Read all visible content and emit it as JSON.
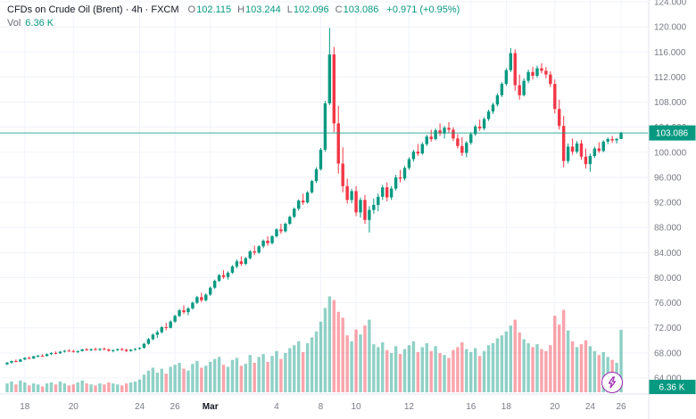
{
  "legend": {
    "title": "CFDs on Crude Oil (Brent) · 4h · FXCM",
    "o_label": "O",
    "o_value": "102.115",
    "h_label": "H",
    "h_value": "103.244",
    "l_label": "L",
    "l_value": "102.096",
    "c_label": "C",
    "c_value": "103.086",
    "change": "+0.971 (+0.95%)",
    "vol_label": "Vol",
    "vol_value": "6.36 K"
  },
  "colors": {
    "up": "#089981",
    "down": "#f23645",
    "vol_up": "rgba(8,153,129,0.45)",
    "vol_down": "rgba(242,54,69,0.45)",
    "grid": "#f0f3fa",
    "axis_text": "#787b86",
    "axis_border": "#e0e3eb",
    "badge_bg": "#089981",
    "badge_text": "#ffffff",
    "month_text": "#131722",
    "quick_button": "#9c27b0"
  },
  "price_axis": {
    "current_price_label": "103.086",
    "volume_badge_label": "6.36 K"
  },
  "quick_button": {
    "icon": "lightning-icon"
  },
  "chart_data": {
    "type": "candlestick",
    "title": "CFDs on Crude Oil (Brent)",
    "timeframe": "4h",
    "exchange": "FXCM",
    "legend_note": "volume pane overlaid at bottom",
    "ylim": [
      62.5,
      124.3
    ],
    "last_price": 103.086,
    "last_volume_k": 6.36,
    "price_ticks": [
      124,
      120,
      116,
      112,
      108,
      104,
      100,
      96,
      92,
      88,
      84,
      80,
      76,
      72,
      68,
      64
    ],
    "time_ticks": [
      {
        "label": "18",
        "i": 4
      },
      {
        "label": "20",
        "i": 15
      },
      {
        "label": "24",
        "i": 30
      },
      {
        "label": "26",
        "i": 38
      },
      {
        "label": "Mar",
        "i": 46,
        "bold": true
      },
      {
        "label": "4",
        "i": 61
      },
      {
        "label": "8",
        "i": 71
      },
      {
        "label": "10",
        "i": 79
      },
      {
        "label": "12",
        "i": 91
      },
      {
        "label": "16",
        "i": 105
      },
      {
        "label": "18",
        "i": 113
      },
      {
        "label": "20",
        "i": 124
      },
      {
        "label": "24",
        "i": 132
      },
      {
        "label": "26",
        "i": 139
      }
    ],
    "candles_format": [
      "open",
      "high",
      "low",
      "close",
      "volume_k"
    ],
    "candles": [
      [
        66.2,
        66.55,
        66.05,
        66.45,
        0.9
      ],
      [
        66.45,
        66.8,
        66.3,
        66.7,
        1.1
      ],
      [
        66.7,
        66.95,
        66.5,
        66.6,
        0.8
      ],
      [
        66.6,
        67.05,
        66.55,
        66.95,
        1.2
      ],
      [
        66.95,
        67.3,
        66.85,
        67.2,
        1.0
      ],
      [
        67.2,
        67.45,
        67.0,
        67.1,
        0.7
      ],
      [
        67.1,
        67.55,
        67.05,
        67.45,
        0.9
      ],
      [
        67.45,
        67.7,
        67.3,
        67.55,
        0.8
      ],
      [
        67.55,
        67.8,
        67.4,
        67.5,
        0.6
      ],
      [
        67.5,
        67.9,
        67.45,
        67.8,
        0.9
      ],
      [
        67.8,
        68.1,
        67.65,
        68.0,
        1.0
      ],
      [
        68.0,
        68.25,
        67.8,
        67.95,
        0.8
      ],
      [
        67.95,
        68.3,
        67.85,
        68.2,
        1.1
      ],
      [
        68.2,
        68.45,
        68.05,
        68.35,
        0.9
      ],
      [
        68.35,
        68.6,
        68.2,
        68.3,
        0.7
      ],
      [
        68.3,
        68.5,
        68.05,
        68.15,
        0.8
      ],
      [
        68.15,
        68.4,
        67.95,
        68.3,
        1.0
      ],
      [
        68.3,
        68.65,
        68.2,
        68.55,
        1.2
      ],
      [
        68.55,
        68.8,
        68.35,
        68.45,
        0.9
      ],
      [
        68.45,
        68.7,
        68.25,
        68.6,
        0.8
      ],
      [
        68.6,
        68.85,
        68.4,
        68.5,
        0.7
      ],
      [
        68.5,
        68.75,
        68.3,
        68.65,
        0.9
      ],
      [
        68.65,
        68.9,
        68.45,
        68.55,
        0.8
      ],
      [
        68.55,
        68.7,
        68.2,
        68.35,
        1.0
      ],
      [
        68.35,
        68.55,
        68.1,
        68.45,
        0.9
      ],
      [
        68.45,
        68.7,
        68.3,
        68.6,
        0.8
      ],
      [
        68.6,
        68.8,
        68.35,
        68.5,
        0.7
      ],
      [
        68.5,
        68.65,
        68.15,
        68.3,
        0.9
      ],
      [
        68.3,
        68.6,
        68.2,
        68.5,
        1.0
      ],
      [
        68.5,
        68.75,
        68.35,
        68.65,
        1.1
      ],
      [
        68.65,
        68.9,
        68.5,
        68.8,
        1.3
      ],
      [
        68.8,
        69.6,
        68.7,
        69.45,
        1.8
      ],
      [
        69.45,
        70.4,
        69.3,
        70.2,
        2.2
      ],
      [
        70.2,
        71.1,
        70.0,
        70.9,
        2.5
      ],
      [
        70.9,
        71.6,
        70.4,
        71.3,
        2.0
      ],
      [
        71.3,
        72.3,
        71.1,
        72.1,
        2.4
      ],
      [
        72.1,
        72.8,
        71.6,
        72.0,
        1.9
      ],
      [
        72.0,
        73.2,
        71.9,
        73.0,
        2.6
      ],
      [
        73.0,
        74.1,
        72.8,
        73.9,
        2.8
      ],
      [
        73.9,
        75.0,
        73.7,
        74.8,
        3.0
      ],
      [
        74.8,
        75.6,
        74.2,
        74.5,
        2.4
      ],
      [
        74.5,
        75.3,
        74.0,
        75.1,
        2.2
      ],
      [
        75.1,
        76.2,
        74.9,
        76.0,
        2.9
      ],
      [
        76.0,
        77.1,
        75.8,
        76.9,
        3.2
      ],
      [
        76.9,
        77.6,
        76.1,
        76.4,
        2.5
      ],
      [
        76.4,
        77.5,
        76.2,
        77.3,
        2.7
      ],
      [
        77.3,
        78.6,
        77.1,
        78.4,
        3.1
      ],
      [
        78.4,
        79.7,
        78.2,
        79.5,
        3.4
      ],
      [
        79.5,
        80.6,
        79.3,
        80.4,
        3.6
      ],
      [
        80.4,
        81.2,
        79.8,
        80.1,
        2.8
      ],
      [
        80.1,
        81.0,
        79.7,
        80.8,
        2.6
      ],
      [
        80.8,
        82.0,
        80.6,
        81.8,
        3.3
      ],
      [
        81.8,
        82.9,
        81.5,
        82.6,
        3.5
      ],
      [
        82.6,
        83.4,
        81.9,
        82.2,
        2.7
      ],
      [
        82.2,
        83.3,
        82.0,
        83.1,
        2.9
      ],
      [
        83.1,
        84.4,
        82.9,
        84.2,
        3.8
      ],
      [
        84.2,
        85.1,
        83.6,
        84.0,
        3.0
      ],
      [
        84.0,
        85.2,
        83.8,
        85.0,
        3.6
      ],
      [
        85.0,
        86.1,
        84.7,
        85.9,
        3.9
      ],
      [
        85.9,
        86.6,
        85.1,
        85.5,
        3.1
      ],
      [
        85.5,
        86.8,
        85.3,
        86.6,
        3.7
      ],
      [
        86.6,
        87.9,
        86.4,
        87.7,
        4.2
      ],
      [
        87.7,
        88.6,
        87.0,
        87.4,
        3.4
      ],
      [
        87.4,
        88.8,
        87.2,
        88.6,
        4.0
      ],
      [
        88.6,
        89.9,
        88.4,
        89.7,
        4.5
      ],
      [
        89.7,
        91.2,
        89.5,
        91.0,
        4.8
      ],
      [
        91.0,
        92.5,
        90.7,
        92.3,
        5.2
      ],
      [
        92.3,
        93.4,
        91.6,
        92.0,
        4.1
      ],
      [
        92.0,
        93.8,
        91.8,
        93.6,
        5.0
      ],
      [
        93.6,
        95.6,
        93.4,
        95.4,
        5.6
      ],
      [
        95.4,
        97.6,
        95.1,
        97.3,
        6.2
      ],
      [
        97.3,
        100.7,
        97.1,
        100.4,
        7.2
      ],
      [
        100.4,
        108.2,
        100.1,
        107.8,
        8.6
      ],
      [
        107.8,
        119.84,
        107.5,
        115.6,
        9.78
      ],
      [
        115.6,
        116.8,
        103.2,
        104.6,
        9.4
      ],
      [
        104.6,
        107.4,
        96.6,
        98.2,
        8.2
      ],
      [
        98.2,
        100.8,
        93.6,
        94.6,
        7.6
      ],
      [
        94.6,
        95.8,
        91.8,
        92.4,
        5.8
      ],
      [
        92.4,
        94.2,
        91.9,
        93.8,
        5.2
      ],
      [
        93.8,
        94.6,
        89.8,
        90.4,
        6.4
      ],
      [
        90.4,
        92.8,
        89.6,
        92.4,
        5.9
      ],
      [
        92.4,
        93.2,
        88.6,
        89.2,
        6.8
      ],
      [
        89.2,
        91.4,
        87.2,
        90.8,
        7.4
      ],
      [
        90.8,
        92.6,
        90.2,
        91.6,
        4.9
      ],
      [
        91.6,
        93.4,
        90.6,
        92.9,
        4.6
      ],
      [
        92.9,
        94.8,
        92.4,
        94.4,
        5.1
      ],
      [
        94.4,
        95.2,
        92.2,
        92.8,
        4.3
      ],
      [
        92.8,
        94.6,
        92.4,
        94.2,
        4.0
      ],
      [
        94.2,
        96.4,
        93.9,
        96.0,
        4.7
      ],
      [
        96.0,
        97.2,
        95.2,
        95.8,
        3.9
      ],
      [
        95.8,
        97.8,
        95.5,
        97.5,
        4.4
      ],
      [
        97.5,
        99.2,
        97.2,
        98.9,
        4.8
      ],
      [
        98.9,
        100.4,
        98.5,
        100.1,
        5.2
      ],
      [
        100.1,
        101.3,
        99.4,
        99.8,
        4.1
      ],
      [
        99.8,
        101.6,
        99.6,
        101.3,
        4.6
      ],
      [
        101.3,
        102.8,
        101.0,
        102.5,
        5.0
      ],
      [
        102.5,
        103.6,
        101.7,
        102.1,
        4.2
      ],
      [
        102.1,
        103.8,
        101.9,
        103.5,
        4.7
      ],
      [
        103.5,
        104.6,
        102.6,
        103.0,
        4.0
      ],
      [
        103.0,
        104.2,
        102.2,
        103.9,
        3.8
      ],
      [
        103.9,
        104.8,
        103.1,
        103.6,
        3.5
      ],
      [
        103.6,
        104.0,
        101.8,
        102.2,
        4.3
      ],
      [
        102.2,
        102.9,
        100.6,
        101.0,
        4.6
      ],
      [
        101.0,
        102.4,
        99.4,
        99.9,
        5.1
      ],
      [
        99.9,
        101.8,
        99.2,
        101.5,
        4.4
      ],
      [
        101.5,
        103.2,
        101.2,
        102.9,
        4.1
      ],
      [
        102.9,
        104.4,
        102.6,
        104.1,
        4.5
      ],
      [
        104.1,
        105.2,
        103.4,
        103.8,
        3.7
      ],
      [
        103.8,
        105.6,
        103.5,
        105.3,
        4.2
      ],
      [
        105.3,
        106.8,
        105.0,
        106.5,
        4.8
      ],
      [
        106.5,
        107.9,
        106.1,
        107.6,
        5.0
      ],
      [
        107.6,
        109.4,
        107.3,
        109.1,
        5.5
      ],
      [
        109.1,
        111.2,
        108.8,
        110.9,
        5.8
      ],
      [
        110.9,
        113.4,
        110.6,
        113.1,
        6.2
      ],
      [
        113.1,
        116.63,
        112.8,
        115.8,
        6.8
      ],
      [
        115.8,
        116.4,
        109.8,
        110.7,
        7.4
      ],
      [
        110.7,
        112.4,
        108.4,
        109.1,
        6.1
      ],
      [
        109.1,
        111.8,
        108.9,
        111.4,
        5.4
      ],
      [
        111.4,
        113.2,
        111.0,
        112.8,
        5.0
      ],
      [
        112.8,
        113.6,
        111.6,
        112.2,
        4.6
      ],
      [
        112.2,
        113.8,
        111.9,
        113.4,
        4.9
      ],
      [
        113.4,
        114.2,
        112.6,
        113.0,
        4.4
      ],
      [
        113.0,
        113.6,
        111.8,
        112.4,
        4.2
      ],
      [
        112.4,
        112.9,
        110.4,
        110.9,
        4.8
      ],
      [
        110.9,
        111.6,
        106.2,
        106.9,
        7.8
      ],
      [
        106.9,
        108.4,
        103.6,
        104.2,
        6.9
      ],
      [
        104.2,
        105.8,
        97.6,
        98.6,
        8.4
      ],
      [
        98.6,
        101.4,
        98.2,
        100.9,
        6.3
      ],
      [
        100.9,
        102.2,
        99.6,
        100.1,
        5.2
      ],
      [
        100.1,
        101.8,
        99.8,
        101.4,
        4.6
      ],
      [
        101.4,
        102.0,
        98.8,
        99.3,
        4.9
      ],
      [
        99.3,
        100.6,
        97.4,
        98.1,
        5.3
      ],
      [
        98.1,
        99.8,
        96.9,
        99.4,
        4.7
      ],
      [
        99.4,
        100.9,
        99.1,
        100.6,
        4.2
      ],
      [
        100.6,
        101.6,
        99.9,
        100.2,
        3.8
      ],
      [
        100.2,
        101.9,
        100.0,
        101.7,
        4.1
      ],
      [
        101.7,
        102.4,
        101.3,
        102.1,
        3.6
      ],
      [
        102.1,
        102.6,
        101.5,
        101.9,
        3.3
      ],
      [
        101.9,
        102.3,
        101.4,
        102.115,
        3.0
      ],
      [
        102.115,
        103.244,
        102.096,
        103.086,
        6.36
      ]
    ]
  }
}
